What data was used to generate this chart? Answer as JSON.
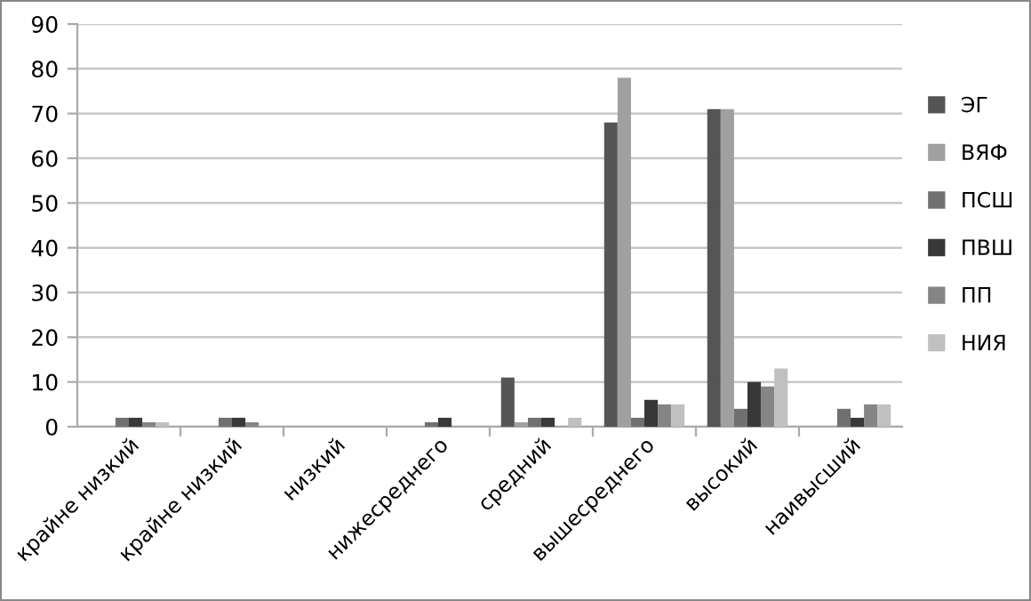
{
  "chart_data": {
    "type": "bar",
    "categories": [
      "крайне низкий",
      "крайне низкий",
      "низкий",
      "нижесреднего",
      "средний",
      "вышесреднего",
      "высокий",
      "наивысший"
    ],
    "series": [
      {
        "name": "ЭГ",
        "color": "#555555",
        "values": [
          0,
          0,
          0,
          0,
          11,
          68,
          71,
          0
        ]
      },
      {
        "name": "ВЯФ",
        "color": "#a0a0a0",
        "values": [
          0,
          0,
          0,
          0,
          1,
          78,
          71,
          0
        ]
      },
      {
        "name": "ПСШ",
        "color": "#707070",
        "values": [
          2,
          2,
          0,
          1,
          2,
          2,
          4,
          4
        ]
      },
      {
        "name": "ПВШ",
        "color": "#383838",
        "values": [
          2,
          2,
          0,
          2,
          2,
          6,
          10,
          2
        ]
      },
      {
        "name": "ПП",
        "color": "#858585",
        "values": [
          1,
          1,
          0,
          0,
          0,
          5,
          9,
          5
        ]
      },
      {
        "name": "НИЯ",
        "color": "#c0c0c0",
        "values": [
          1,
          0,
          0,
          0,
          2,
          5,
          13,
          5
        ]
      }
    ],
    "ylim": [
      0,
      90
    ],
    "yticks": [
      0,
      10,
      20,
      30,
      40,
      50,
      60,
      70,
      80,
      90
    ],
    "grid": "y",
    "legend": "right"
  }
}
